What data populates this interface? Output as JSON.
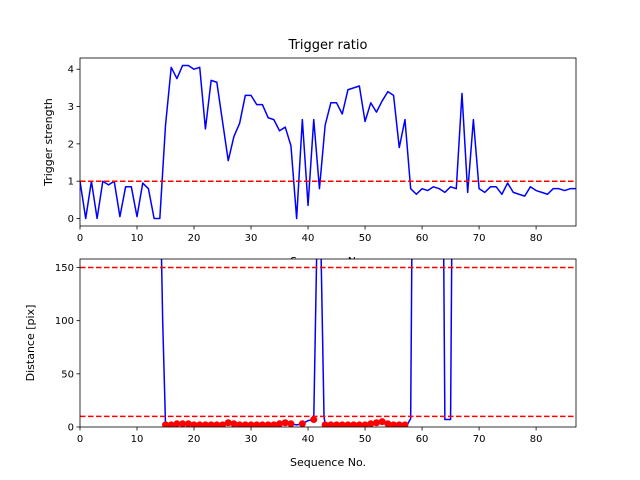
{
  "chart_data": [
    {
      "type": "line",
      "title": "Trigger ratio",
      "xlabel": "Sequence No.",
      "ylabel": "Trigger strength",
      "xlim": [
        0,
        87
      ],
      "ylim": [
        -0.2,
        4.3
      ],
      "xticks": [
        "0",
        "10",
        "20",
        "30",
        "40",
        "50",
        "60",
        "70",
        "80"
      ],
      "yticks": [
        "0",
        "1",
        "2",
        "3",
        "4"
      ],
      "grid": false,
      "colors": {
        "line": "#0000ff",
        "threshold": "#ff0000"
      },
      "threshold_lines": [
        1.0
      ],
      "series": [
        {
          "x": [
            0,
            1,
            2,
            3,
            4,
            5,
            6,
            7,
            8,
            9,
            10,
            11,
            12,
            13,
            14,
            15,
            16,
            17,
            18,
            19,
            20,
            21,
            22,
            23,
            24,
            25,
            26,
            27,
            28,
            29,
            30,
            31,
            32,
            33,
            34,
            35,
            36,
            37,
            38,
            39,
            40,
            41,
            42,
            43,
            44,
            45,
            46,
            47,
            48,
            49,
            50,
            51,
            52,
            53,
            54,
            55,
            56,
            57,
            58,
            59,
            60,
            61,
            62,
            63,
            64,
            65,
            66,
            67,
            68,
            69,
            70,
            71,
            72,
            73,
            74,
            75,
            76,
            77,
            78,
            79,
            80,
            81,
            82,
            83,
            84,
            85,
            86,
            87
          ],
          "values": [
            1.0,
            0.0,
            1.0,
            0.0,
            1.0,
            0.9,
            1.0,
            0.05,
            0.85,
            0.85,
            0.05,
            0.95,
            0.8,
            0.0,
            0.0,
            2.5,
            4.05,
            3.75,
            4.1,
            4.1,
            4.0,
            4.05,
            2.4,
            3.7,
            3.65,
            2.6,
            1.55,
            2.2,
            2.55,
            3.3,
            3.3,
            3.05,
            3.05,
            2.7,
            2.65,
            2.35,
            2.45,
            1.95,
            0.0,
            2.65,
            0.35,
            2.65,
            0.8,
            2.5,
            3.1,
            3.1,
            2.8,
            3.45,
            3.5,
            3.55,
            2.6,
            3.1,
            2.85,
            3.15,
            3.4,
            3.3,
            1.9,
            2.65,
            0.8,
            0.65,
            0.8,
            0.75,
            0.85,
            0.8,
            0.7,
            0.85,
            0.8,
            3.35,
            0.7,
            2.65,
            0.8,
            0.7,
            0.85,
            0.85,
            0.65,
            0.95,
            0.7,
            0.65,
            0.6,
            0.85,
            0.75,
            0.7,
            0.65,
            0.8,
            0.8,
            0.75,
            0.8,
            0.8
          ]
        }
      ]
    },
    {
      "type": "line",
      "title": "",
      "xlabel": "Sequence No.",
      "ylabel": "Distance [pix]",
      "xlim": [
        0,
        87
      ],
      "ylim": [
        0,
        158
      ],
      "xticks": [
        "0",
        "10",
        "20",
        "30",
        "40",
        "50",
        "60",
        "70",
        "80"
      ],
      "yticks": [
        "0",
        "50",
        "100",
        "150"
      ],
      "grid": false,
      "colors": {
        "line": "#0000ff",
        "markers": "#ff0000",
        "threshold": "#ff0000"
      },
      "threshold_lines": [
        10,
        150
      ],
      "series": [
        {
          "segments": [
            {
              "x": [
                14.3,
                14.5,
                15.0,
                15.5,
                16,
                17,
                18,
                19,
                20,
                21,
                22,
                23,
                24,
                25,
                26,
                27,
                28,
                29,
                30,
                31,
                32,
                33,
                34,
                35,
                36,
                37,
                38,
                39,
                40,
                41,
                41.5
              ],
              "values": [
                158,
                100,
                2,
                2,
                2,
                3,
                3,
                3,
                2,
                2,
                2,
                2,
                2,
                2,
                4,
                3,
                2,
                2,
                2,
                2,
                2,
                2,
                2,
                3,
                4,
                3,
                2,
                3,
                6,
                7,
                158
              ]
            },
            {
              "x": [
                42.3,
                42.8,
                43,
                44,
                45,
                46,
                47,
                48,
                49,
                50,
                51,
                52,
                53,
                54,
                55,
                56,
                57,
                57.5,
                58,
                58.2
              ],
              "values": [
                158,
                10,
                2,
                2,
                2,
                2,
                2,
                2,
                2,
                2,
                3,
                4,
                5,
                3,
                2,
                2,
                2,
                3,
                8,
                158
              ]
            },
            {
              "x": [
                63.8,
                64,
                65,
                65.2
              ],
              "values": [
                158,
                7,
                7,
                158
              ]
            }
          ],
          "points": [
            {
              "x": 15,
              "y": 2
            },
            {
              "x": 16,
              "y": 2
            },
            {
              "x": 17,
              "y": 3
            },
            {
              "x": 18,
              "y": 3
            },
            {
              "x": 19,
              "y": 3
            },
            {
              "x": 20,
              "y": 2
            },
            {
              "x": 21,
              "y": 2
            },
            {
              "x": 22,
              "y": 2
            },
            {
              "x": 23,
              "y": 2
            },
            {
              "x": 24,
              "y": 2
            },
            {
              "x": 25,
              "y": 2
            },
            {
              "x": 26,
              "y": 4
            },
            {
              "x": 27,
              "y": 3
            },
            {
              "x": 28,
              "y": 2
            },
            {
              "x": 29,
              "y": 2
            },
            {
              "x": 30,
              "y": 2
            },
            {
              "x": 31,
              "y": 2
            },
            {
              "x": 32,
              "y": 2
            },
            {
              "x": 33,
              "y": 2
            },
            {
              "x": 34,
              "y": 2
            },
            {
              "x": 35,
              "y": 3
            },
            {
              "x": 36,
              "y": 4
            },
            {
              "x": 37,
              "y": 3
            },
            {
              "x": 39,
              "y": 3
            },
            {
              "x": 41,
              "y": 7
            },
            {
              "x": 43,
              "y": 2
            },
            {
              "x": 44,
              "y": 2
            },
            {
              "x": 45,
              "y": 2
            },
            {
              "x": 46,
              "y": 2
            },
            {
              "x": 47,
              "y": 2
            },
            {
              "x": 48,
              "y": 2
            },
            {
              "x": 49,
              "y": 2
            },
            {
              "x": 50,
              "y": 2
            },
            {
              "x": 51,
              "y": 3
            },
            {
              "x": 52,
              "y": 4
            },
            {
              "x": 53,
              "y": 5
            },
            {
              "x": 54,
              "y": 3
            },
            {
              "x": 55,
              "y": 2
            },
            {
              "x": 56,
              "y": 2
            },
            {
              "x": 57,
              "y": 2
            }
          ]
        }
      ]
    }
  ]
}
